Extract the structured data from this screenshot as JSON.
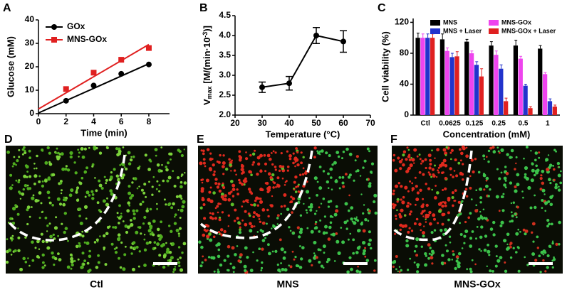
{
  "chart_data": [
    {
      "label": "A",
      "type": "scatter",
      "x_label": "Time (min)",
      "y_label": "Glucose (mM)",
      "xlim": [
        0,
        9.5
      ],
      "xticks": [
        0,
        2,
        4,
        6,
        8
      ],
      "ylim": [
        0,
        40
      ],
      "yticks": [
        0,
        10,
        20,
        30,
        40
      ],
      "fit_x": [
        0,
        8
      ],
      "series": [
        {
          "name": "GOx",
          "color": "#000000",
          "marker": "circle",
          "x": [
            2,
            4,
            6,
            8
          ],
          "values": [
            5.5,
            12,
            17,
            21
          ],
          "fit_values": [
            0.3,
            21.3
          ]
        },
        {
          "name": "MNS-GOx",
          "color": "#e02020",
          "marker": "square",
          "x": [
            2,
            4,
            6,
            8
          ],
          "values": [
            10.5,
            17.5,
            23,
            28
          ],
          "fit_values": [
            2,
            29.5
          ]
        }
      ]
    },
    {
      "label": "B",
      "type": "line",
      "x_label": "Temperature (°C)",
      "y_label": [
        {
          "text": "V"
        },
        {
          "text": "max",
          "shift": "sub"
        },
        {
          "text": " [M/(min·10"
        },
        {
          "text": "-3",
          "shift": "sup"
        },
        {
          "text": ")]"
        }
      ],
      "xlim": [
        20,
        70
      ],
      "xticks": [
        20,
        30,
        40,
        50,
        60,
        70
      ],
      "ylim": [
        2.0,
        4.5
      ],
      "yticks": [
        {
          "value": 2.0,
          "label": "2.0"
        },
        2.5,
        {
          "value": 3.0,
          "label": "3.0"
        },
        3.5,
        {
          "value": 4.0,
          "label": "4.0"
        },
        4.5
      ],
      "color": "#000000",
      "x": [
        30,
        40,
        50,
        60
      ],
      "values": [
        2.7,
        2.8,
        4.0,
        3.85
      ],
      "errors": [
        0.13,
        0.17,
        0.2,
        0.27
      ]
    },
    {
      "label": "C",
      "type": "bar",
      "x_label": "Concentration  (mM)",
      "y_label": "Cell viability (%)",
      "ylim": [
        0,
        125
      ],
      "yticks": [
        0,
        40,
        80,
        120
      ],
      "categories": [
        "Ctl",
        "0.0625",
        "0.125",
        "0.25",
        "0.5",
        "1"
      ],
      "series": [
        {
          "name": "MNS",
          "color": "#000000",
          "values": [
            100,
            98,
            95,
            90,
            90,
            86
          ],
          "errors": [
            6,
            7,
            3,
            5,
            7,
            4
          ]
        },
        {
          "name": "MNS-GOx",
          "color": "#ee44ee",
          "values": [
            100,
            83,
            80,
            78,
            73,
            53
          ],
          "errors": [
            5,
            4,
            3,
            5,
            3,
            2
          ]
        },
        {
          "name": "MNS + Laser",
          "color": "#2233cc",
          "values": [
            100,
            75,
            65,
            60,
            38,
            18
          ],
          "errors": [
            5,
            5,
            4,
            5,
            2,
            3
          ]
        },
        {
          "name": "MNS-GOx + Laser",
          "color": "#e02020",
          "values": [
            100,
            76,
            50,
            18,
            9,
            11
          ],
          "errors": [
            5,
            6,
            10,
            4,
            2,
            2
          ]
        }
      ]
    }
  ],
  "images": [
    {
      "label": "D",
      "caption": "Ctl"
    },
    {
      "label": "E",
      "caption": "MNS"
    },
    {
      "label": "F",
      "caption": "MNS-GOx"
    }
  ]
}
